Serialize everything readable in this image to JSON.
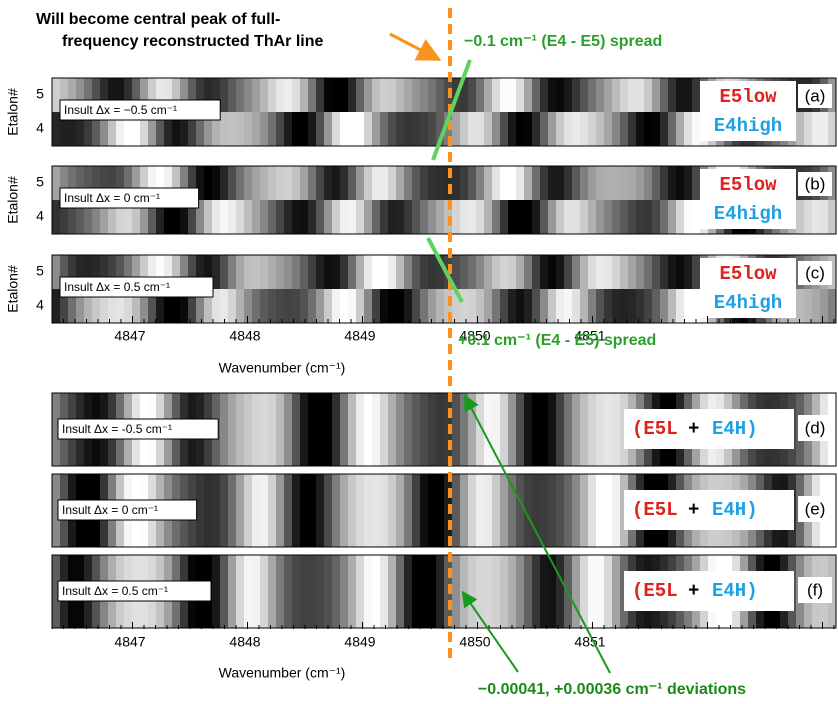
{
  "annotations": {
    "peak_note": [
      "Will become central peak of full-",
      "frequency reconstructed ThAr line"
    ],
    "spread_minus": "−0.1 cm⁻¹ (E4 - E5) spread",
    "spread_plus": "+0.1 cm⁻¹ (E4 - E5) spread",
    "deviations": "−0.00041, +0.00036 cm⁻¹ deviations"
  },
  "top_axis": {
    "ylabel": "Etalon#",
    "rows": [
      "5",
      "4"
    ],
    "ticks": [
      "4847",
      "4848",
      "4849",
      "4850",
      "4851"
    ],
    "xlabel": "Wavenumber (cm⁻¹)"
  },
  "top_panels": [
    {
      "letter": "(a)",
      "insult": "Insult Δx = −0.5 cm⁻¹",
      "labels": [
        "E5low",
        "E4high"
      ]
    },
    {
      "letter": "(b)",
      "insult": "Insult Δx = 0 cm⁻¹",
      "labels": [
        "E5low",
        "E4high"
      ]
    },
    {
      "letter": "(c)",
      "insult": "Insult Δx = 0.5 cm⁻¹",
      "labels": [
        "E5low",
        "E4high"
      ]
    }
  ],
  "bottom_panels": [
    {
      "letter": "(d)",
      "insult": "Insult Δx = -0.5 cm⁻¹",
      "sum": [
        "(E5L",
        "+",
        "E4H)"
      ]
    },
    {
      "letter": "(e)",
      "insult": "Insult Δx = 0 cm⁻¹",
      "sum": [
        "(E5L",
        "+",
        "E4H)"
      ]
    },
    {
      "letter": "(f)",
      "insult": "Insult Δx = 0.5 cm⁻¹",
      "sum": [
        "(E5L",
        "+",
        "E4H)"
      ]
    }
  ],
  "bottom_axis": {
    "ticks": [
      "4847",
      "4848",
      "4849",
      "4850",
      "4851"
    ],
    "xlabel": "Wavenumber (cm⁻¹)"
  }
}
